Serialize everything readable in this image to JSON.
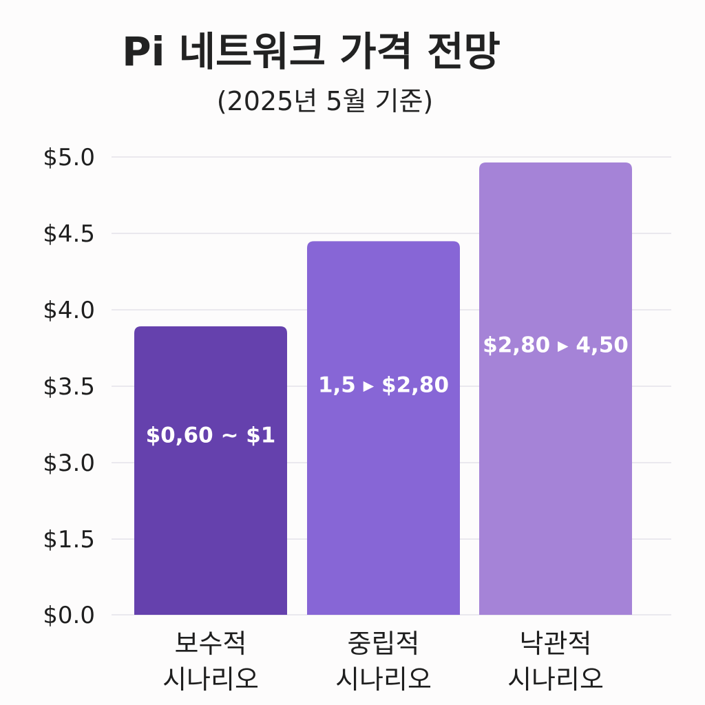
{
  "chart_data": {
    "type": "bar",
    "title": "Pi 네트워크 가격 전망",
    "subtitle": "(2025년 5월 기준)",
    "y_ticks": [
      "$5.0",
      "$4.5",
      "$4.0",
      "$3.5",
      "$3.0",
      "$1.5",
      "$0.0"
    ],
    "ylim": [
      0,
      5.0
    ],
    "grid": true,
    "legend": "none",
    "categories": [
      [
        "보수적",
        "시나리오"
      ],
      [
        "중립적",
        "시나리오"
      ],
      [
        "낙관적",
        "시나리오"
      ]
    ],
    "bar_labels": [
      "$0,60 ~ $1",
      "1,5 ▸ $2,80",
      "$2,80 ▸ 4,50"
    ],
    "values": [
      3.15,
      4.08,
      4.94
    ],
    "colors": [
      "#6541ad",
      "#8766d6",
      "#a583d7"
    ]
  }
}
